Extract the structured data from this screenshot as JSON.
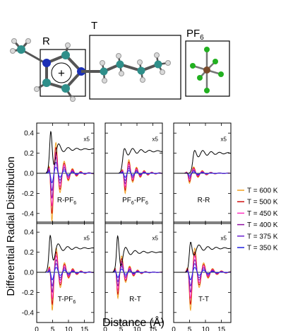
{
  "molecule": {
    "group_labels": {
      "R": "R",
      "T": "T",
      "PF6_main": "PF",
      "PF6_sub": "6"
    },
    "ring_sign": "+",
    "colors": {
      "carbon": "#2f8f8a",
      "nitrogen": "#1b2fb5",
      "hydrogen": "#d9d9d9",
      "phosphorus": "#7a4a2a",
      "fluorine": "#22b020"
    }
  },
  "axis_labels": {
    "y": "Differential Radial Distribution",
    "x": "Distance (Å)"
  },
  "legend": [
    {
      "label": "T = 600 K",
      "color": "#f0a020"
    },
    {
      "label": "T = 500 K",
      "color": "#d01010"
    },
    {
      "label": "T = 450 K",
      "color": "#ff30c0"
    },
    {
      "label": "T = 400 K",
      "color": "#9010a0"
    },
    {
      "label": "T = 375 K",
      "color": "#6a20d0"
    },
    {
      "label": "T = 350 K",
      "color": "#2020e0"
    }
  ],
  "chart_data": {
    "type": "line",
    "xlim": [
      0,
      18
    ],
    "ylim": [
      -0.5,
      0.5
    ],
    "x_ticks": [
      "0",
      "5",
      "10",
      "15"
    ],
    "y_ticks": [
      "-0.4",
      "-0.2",
      "0.0",
      "0.2",
      "0.4"
    ],
    "scale_label": "x5",
    "scaled_series_color": "#000000",
    "temperatures_K": [
      600,
      500,
      450,
      400,
      375,
      350
    ],
    "panels": [
      {
        "label_main": "R-PF",
        "label_sub": "6",
        "label_tail": "",
        "peak_x": 4.8,
        "peak_amp": -0.48,
        "period": 2.6,
        "decay": 2.8,
        "scaled_peak_x": 4.2,
        "scaled_level": 0.24,
        "scaled_amp": 0.45
      },
      {
        "label_main": "PF",
        "label_sub": "6",
        "label_tail": "-PF",
        "label_sub2": "6",
        "peak_x": 6.3,
        "peak_amp": -0.2,
        "period": 2.4,
        "decay": 3.0,
        "scaled_peak_x": 5.5,
        "scaled_level": 0.22,
        "scaled_amp": 0.06
      },
      {
        "label_main": "R-R",
        "label_sub": "",
        "label_tail": "",
        "peak_x": 5.0,
        "peak_amp": -0.1,
        "period": 2.7,
        "decay": 3.0,
        "scaled_peak_x": 6.0,
        "scaled_level": 0.2,
        "scaled_amp": 0.05
      },
      {
        "label_main": "T-PF",
        "label_sub": "6",
        "label_tail": "",
        "peak_x": 4.9,
        "peak_amp": -0.38,
        "period": 2.6,
        "decay": 2.8,
        "scaled_peak_x": 4.0,
        "scaled_level": 0.24,
        "scaled_amp": 0.35
      },
      {
        "label_main": "R-T",
        "label_sub": "",
        "label_tail": "",
        "peak_x": 4.0,
        "peak_amp": -0.26,
        "period": 2.5,
        "decay": 2.6,
        "scaled_peak_x": 3.7,
        "scaled_level": 0.2,
        "scaled_amp": 0.4
      },
      {
        "label_main": "T-T",
        "label_sub": "",
        "label_tail": "",
        "peak_x": 5.3,
        "peak_amp": -0.38,
        "period": 2.8,
        "decay": 3.0,
        "scaled_peak_x": 5.0,
        "scaled_level": 0.24,
        "scaled_amp": 0.2
      }
    ]
  }
}
